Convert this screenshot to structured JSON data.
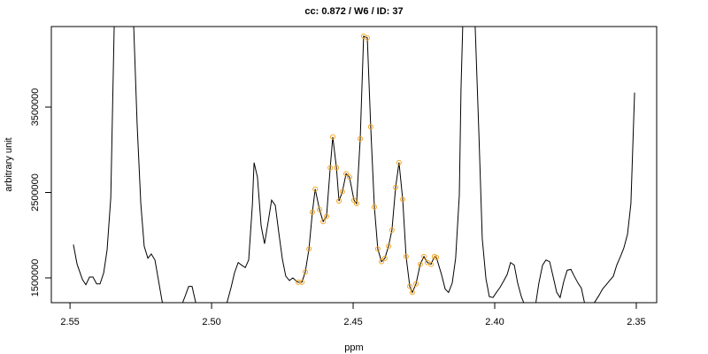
{
  "chart_data": {
    "type": "line",
    "title": "cc: 0.872 / W6 / ID: 37",
    "xlabel": "ppm",
    "ylabel": "arbitrary unit",
    "xlim": [
      2.5566,
      2.3428
    ],
    "ylim": [
      1210000,
      4443000
    ],
    "xticks": [
      2.55,
      {
        "value": 2.5,
        "label": "2.50"
      },
      2.45,
      {
        "value": 2.4,
        "label": "2.40"
      },
      2.35
    ],
    "yticks": [
      1500000,
      2500000,
      3500000
    ],
    "series": [
      {
        "type": "line",
        "color": "#000000",
        "x": [
          2.5488,
          2.5475,
          2.5456,
          2.5444,
          2.5431,
          2.5419,
          2.5406,
          2.5394,
          2.5381,
          2.5369,
          2.5356,
          2.5344,
          2.5331,
          2.5288,
          2.5275,
          2.5263,
          2.525,
          2.5238,
          2.5225,
          2.5213,
          2.52,
          2.5188,
          2.5175,
          2.5163,
          2.5106,
          2.5094,
          2.5081,
          2.5069,
          2.5056,
          2.5044,
          2.4956,
          2.4944,
          2.4931,
          2.4919,
          2.4906,
          2.4894,
          2.4881,
          2.4869,
          2.4856,
          2.485,
          2.4838,
          2.4825,
          2.4813,
          2.48,
          2.4788,
          2.4775,
          2.4763,
          2.475,
          2.4738,
          2.4725,
          2.4713,
          2.47,
          2.4694,
          2.4681,
          2.4669,
          2.4656,
          2.4644,
          2.4634,
          2.4619,
          2.4606,
          2.4594,
          2.4581,
          2.4572,
          2.4559,
          2.455,
          2.4538,
          2.4525,
          2.4513,
          2.4497,
          2.4488,
          2.4475,
          2.4463,
          2.445,
          2.4438,
          2.4425,
          2.4413,
          2.44,
          2.4388,
          2.4375,
          2.4363,
          2.435,
          2.4338,
          2.4325,
          2.4313,
          2.43,
          2.4291,
          2.4278,
          2.4263,
          2.425,
          2.4238,
          2.4225,
          2.4213,
          2.4206,
          2.4188,
          2.4175,
          2.4163,
          2.415,
          2.4138,
          2.4125,
          2.4119,
          2.4113,
          2.4106,
          2.4081,
          2.4069,
          2.4056,
          2.4044,
          2.4031,
          2.4019,
          2.4006,
          2.3994,
          2.3981,
          2.3969,
          2.3956,
          2.3944,
          2.3931,
          2.3919,
          2.3906,
          2.3894,
          2.3856,
          2.3844,
          2.3831,
          2.3819,
          2.3806,
          2.3794,
          2.3781,
          2.3769,
          2.3756,
          2.3744,
          2.3731,
          2.3719,
          2.3706,
          2.3694,
          2.3681,
          2.3656,
          2.3644,
          2.3631,
          2.3619,
          2.3606,
          2.3594,
          2.3581,
          2.3569,
          2.3556,
          2.3544,
          2.3531,
          2.3519,
          2.3506
        ],
        "values": [
          1890000,
          1660000,
          1480000,
          1420000,
          1510000,
          1510000,
          1430000,
          1430000,
          1560000,
          1830000,
          2440000,
          4440000,
          6310000,
          6310000,
          4440000,
          3300000,
          2370000,
          1870000,
          1730000,
          1780000,
          1710000,
          1480000,
          1230000,
          1130000,
          1180000,
          1280000,
          1400000,
          1400000,
          1210000,
          1110000,
          1130000,
          1230000,
          1390000,
          1560000,
          1680000,
          1650000,
          1620000,
          1710000,
          2350000,
          2850000,
          2680000,
          2110000,
          1900000,
          2160000,
          2410000,
          2350000,
          2040000,
          1720000,
          1520000,
          1470000,
          1500000,
          1460000,
          1450000,
          1450000,
          1570000,
          1840000,
          2270000,
          2540000,
          2300000,
          2160000,
          2220000,
          2790000,
          3150000,
          2790000,
          2400000,
          2510000,
          2720000,
          2680000,
          2410000,
          2370000,
          3130000,
          4330000,
          4310000,
          3270000,
          2330000,
          1840000,
          1690000,
          1730000,
          1870000,
          2060000,
          2560000,
          2850000,
          2420000,
          1750000,
          1400000,
          1330000,
          1430000,
          1660000,
          1750000,
          1680000,
          1660000,
          1750000,
          1740000,
          1540000,
          1370000,
          1330000,
          1440000,
          1730000,
          2470000,
          3720000,
          4440000,
          6830000,
          6830000,
          4440000,
          3200000,
          1960000,
          1490000,
          1280000,
          1270000,
          1330000,
          1390000,
          1460000,
          1540000,
          1680000,
          1650000,
          1440000,
          1280000,
          1180000,
          1180000,
          1440000,
          1650000,
          1710000,
          1690000,
          1520000,
          1330000,
          1270000,
          1460000,
          1590000,
          1600000,
          1520000,
          1440000,
          1380000,
          1180000,
          1180000,
          1230000,
          1300000,
          1370000,
          1420000,
          1470000,
          1520000,
          1650000,
          1750000,
          1850000,
          2010000,
          2370000,
          3670000
        ]
      },
      {
        "type": "scatter",
        "color": "#f5a623",
        "x": [
          2.4694,
          2.4681,
          2.4669,
          2.4656,
          2.4644,
          2.4634,
          2.4619,
          2.4606,
          2.4594,
          2.4581,
          2.4572,
          2.4559,
          2.455,
          2.4538,
          2.4525,
          2.4513,
          2.4497,
          2.4488,
          2.4475,
          2.4463,
          2.445,
          2.4438,
          2.4425,
          2.4413,
          2.44,
          2.4388,
          2.4375,
          2.4363,
          2.435,
          2.4338,
          2.4325,
          2.4313,
          2.43,
          2.4291,
          2.4278,
          2.4263,
          2.425,
          2.4238,
          2.4225,
          2.4213,
          2.4206
        ],
        "values": [
          1450000,
          1450000,
          1570000,
          1840000,
          2270000,
          2540000,
          2300000,
          2160000,
          2220000,
          2790000,
          3150000,
          2790000,
          2400000,
          2510000,
          2720000,
          2680000,
          2410000,
          2370000,
          3130000,
          4330000,
          4310000,
          3270000,
          2330000,
          1840000,
          1690000,
          1730000,
          1870000,
          2060000,
          2560000,
          2850000,
          2420000,
          1750000,
          1400000,
          1330000,
          1430000,
          1660000,
          1750000,
          1680000,
          1660000,
          1750000,
          1740000
        ]
      }
    ]
  }
}
